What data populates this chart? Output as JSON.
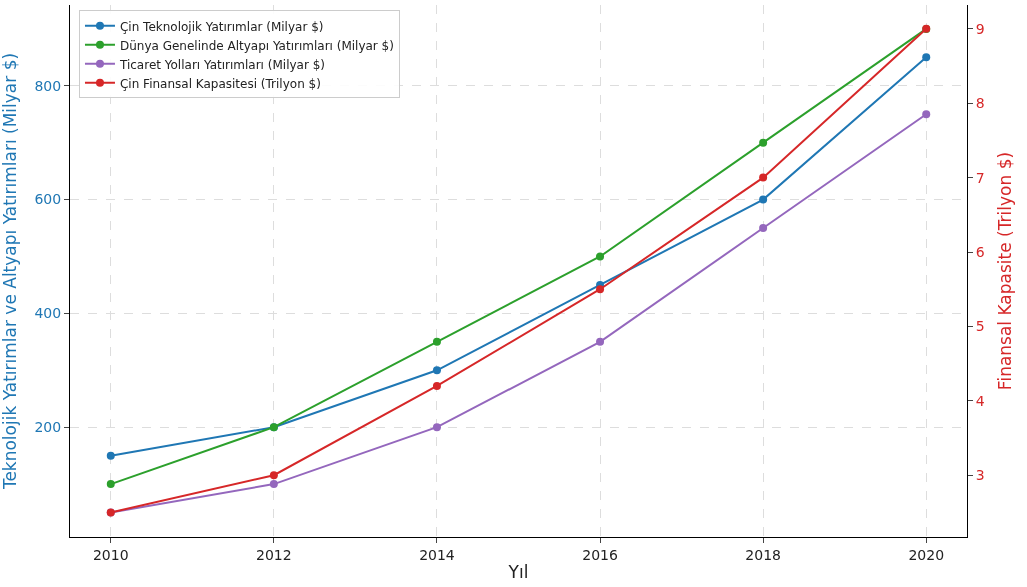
{
  "chart_data": {
    "type": "line",
    "xlabel": "Yıl",
    "ylabel": "Teknolojik Yatırımlar ve Altyapı Yatırımları (Milyar $)",
    "y2label": "Finansal Kapasite (Trilyon $)",
    "x": [
      2010,
      2012,
      2014,
      2016,
      2018,
      2020
    ],
    "series": [
      {
        "name": "Çin Teknolojik Yatırımlar (Milyar $)",
        "color": "#1f77b4",
        "values": [
          150,
          200,
          300,
          450,
          600,
          850
        ]
      },
      {
        "name": "Dünya Genelinde Altyapı Yatırımları (Milyar $)",
        "color": "#2ca02c",
        "values": [
          100,
          200,
          350,
          500,
          700,
          900
        ]
      },
      {
        "name": "Ticaret Yolları Yatırımları (Milyar $)",
        "color": "#9467bd",
        "values": [
          50,
          100,
          200,
          350,
          550,
          750
        ]
      },
      {
        "name": "Çin Finansal Kapasitesi (Trilyon $)",
        "color": "#d62728",
        "values": [
          2.5,
          3.0,
          4.2,
          5.5,
          7.0,
          9.0
        ],
        "axis": "y2"
      }
    ],
    "xlim": [
      2009.5,
      2020.5
    ],
    "xticks": [
      2010,
      2012,
      2014,
      2016,
      2018,
      2020
    ],
    "ylim": [
      7,
      942
    ],
    "yticks": [
      200,
      400,
      600,
      800
    ],
    "y2lim": [
      2.17,
      9.32
    ],
    "y2ticks": [
      3,
      4,
      5,
      6,
      7,
      8,
      9
    ],
    "grid": true,
    "legend": "top left",
    "marker": "circle",
    "line_style": "solid"
  }
}
